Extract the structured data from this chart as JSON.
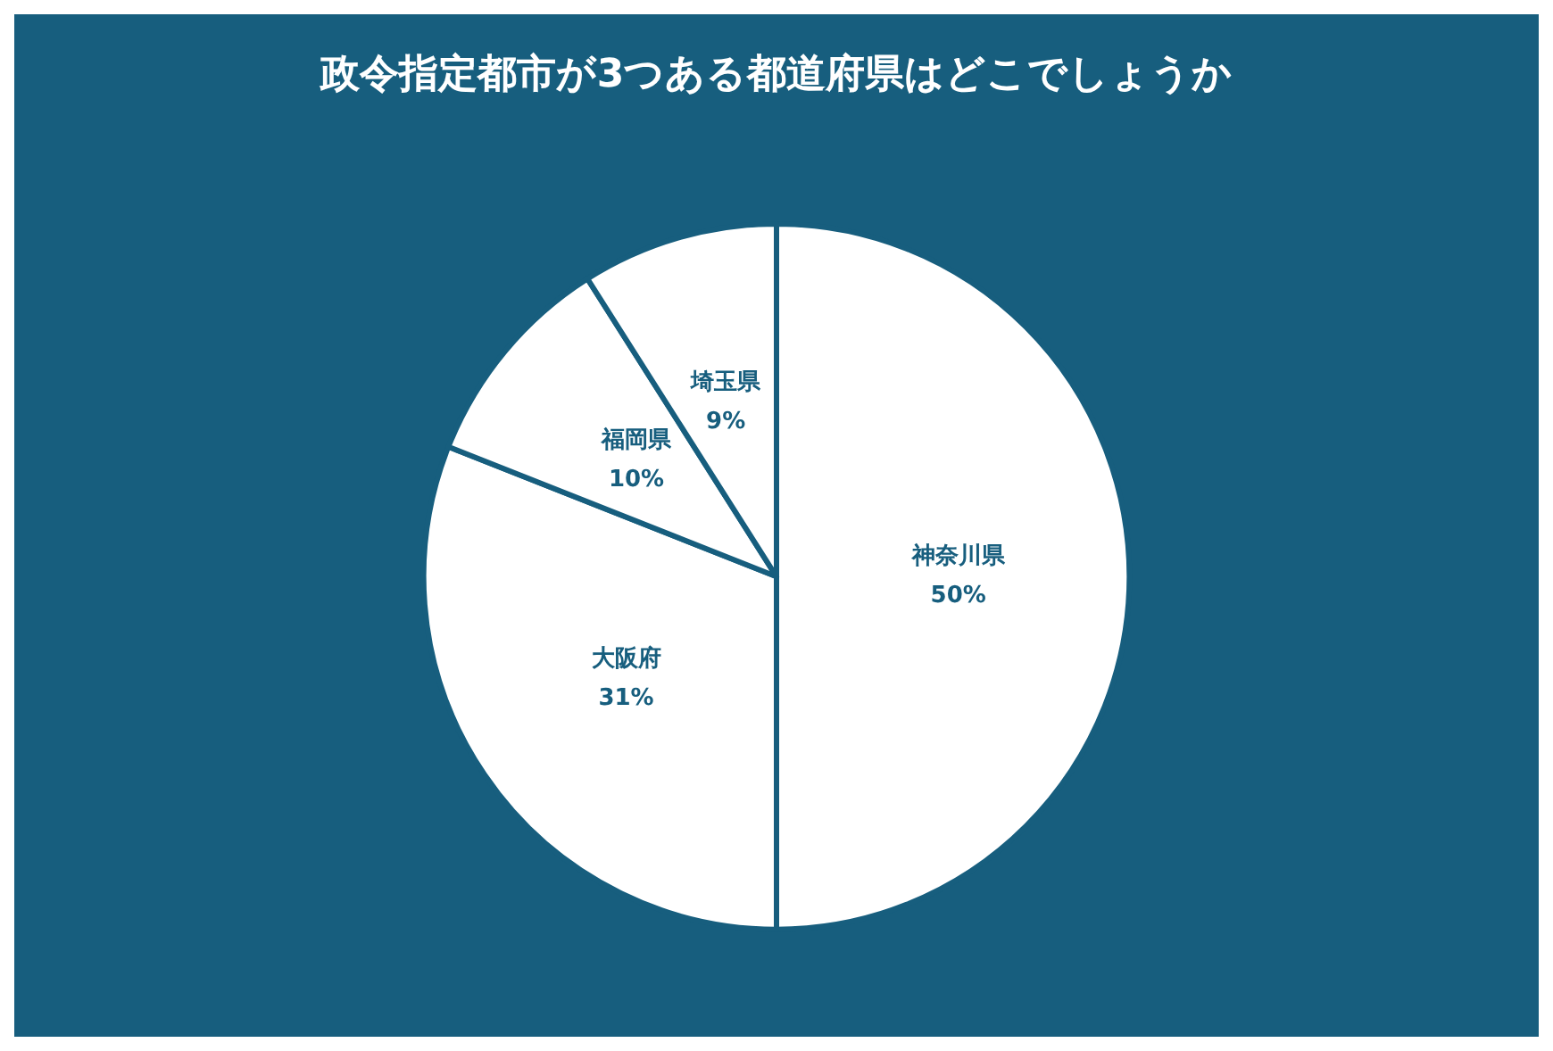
{
  "chart_data": {
    "type": "pie",
    "title": "政令指定都市が3つある都道府県はどこでしょうか",
    "categories": [
      "神奈川県",
      "大阪府",
      "福岡県",
      "埼玉県"
    ],
    "values": [
      50,
      31,
      10,
      9
    ],
    "value_labels": [
      "50%",
      "31%",
      "10%",
      "9%"
    ],
    "colors": [
      "#ffffff",
      "#ffffff",
      "#ffffff",
      "#ffffff"
    ],
    "legend": false
  }
}
